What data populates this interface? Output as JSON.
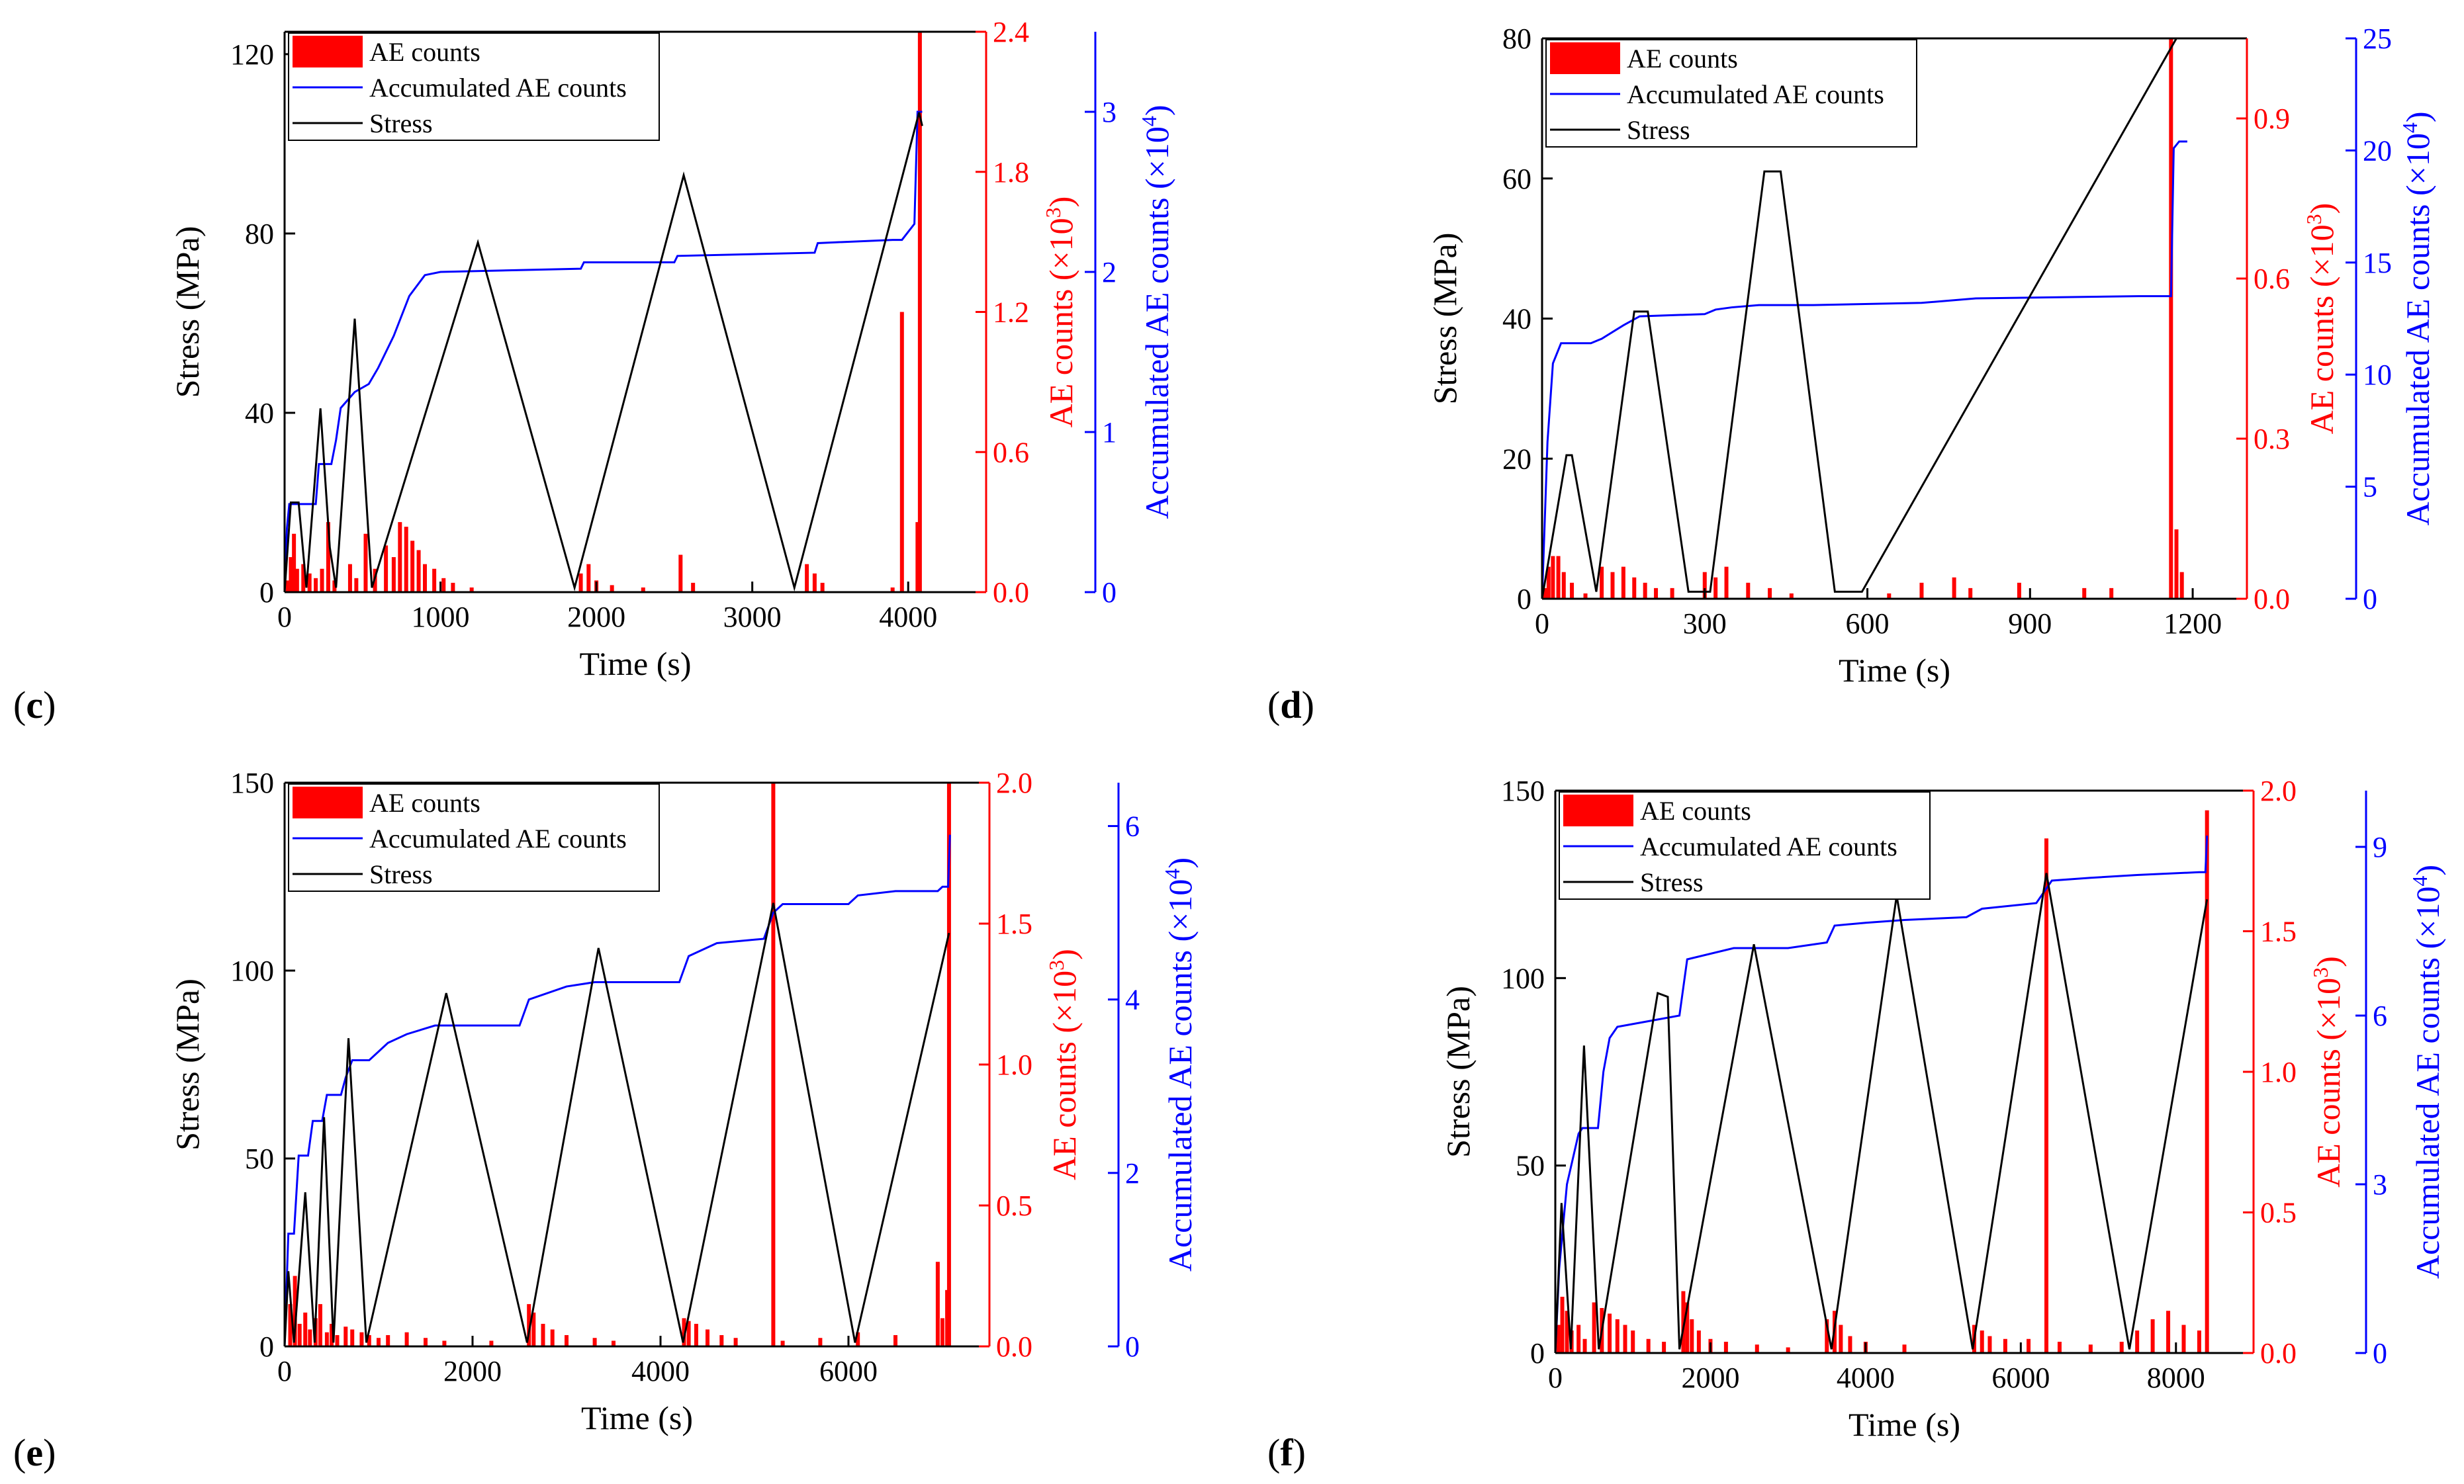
{
  "colors": {
    "ae": "#ff0000",
    "acc": "#0000ff",
    "stress": "#000000"
  },
  "chart_data": [
    {
      "id": "c",
      "panel_label": "(c)",
      "panel_letter": "c",
      "type": "bar+line",
      "xlabel": "Time (s)",
      "ylabel_left": "Stress (MPa)",
      "ylabel_ae": "AE counts (×10",
      "ylabel_ae_exp": "3",
      "ylabel_acc": "Accumulated AE counts (×10",
      "ylabel_acc_exp": "4",
      "xlim": [
        0,
        4500
      ],
      "xticks": [
        0,
        1000,
        2000,
        3000,
        4000
      ],
      "ylim_left": [
        0,
        125
      ],
      "yticks_left": [
        0,
        40,
        80,
        120
      ],
      "ylim_ae": [
        0,
        2.4
      ],
      "yticks_ae": [
        "0.0",
        "0.6",
        "1.2",
        "1.8",
        "2.4"
      ],
      "ylim_acc": [
        0,
        3.5
      ],
      "yticks_acc": [
        0,
        1,
        2,
        3
      ],
      "legend": {
        "ae": "AE counts",
        "acc": "Accumulated AE counts",
        "stress": "Stress"
      },
      "series": [
        {
          "name": "Stress",
          "x": [
            0,
            40,
            90,
            140,
            230,
            290,
            330,
            450,
            560,
            1240,
            1860,
            2560,
            3270,
            4070,
            4090
          ],
          "y": [
            0,
            20,
            20,
            1,
            41,
            10,
            1,
            61,
            1,
            78,
            1,
            93,
            1,
            107,
            104
          ]
        },
        {
          "name": "Accumulated AE counts",
          "x": [
            0,
            15,
            30,
            200,
            220,
            300,
            330,
            360,
            450,
            540,
            600,
            700,
            800,
            900,
            1000,
            1900,
            1920,
            2500,
            2520,
            3400,
            3420,
            3900,
            3960,
            4040,
            4060,
            4090
          ],
          "y": [
            0,
            0.4,
            0.55,
            0.55,
            0.8,
            0.8,
            0.95,
            1.15,
            1.25,
            1.3,
            1.4,
            1.6,
            1.85,
            1.98,
            2.0,
            2.02,
            2.06,
            2.06,
            2.1,
            2.12,
            2.18,
            2.2,
            2.2,
            2.3,
            3.0,
            3.0
          ]
        },
        {
          "name": "AE counts",
          "x": [
            20,
            40,
            60,
            80,
            120,
            160,
            200,
            240,
            280,
            320,
            420,
            460,
            520,
            580,
            650,
            700,
            740,
            780,
            820,
            860,
            900,
            960,
            1020,
            1080,
            1200,
            1900,
            1950,
            2000,
            2100,
            2300,
            2540,
            2620,
            3350,
            3400,
            3450,
            3900,
            3960,
            4060,
            4075
          ],
          "y": [
            0.05,
            0.15,
            0.25,
            0.1,
            0.12,
            0.08,
            0.06,
            0.1,
            0.3,
            0.05,
            0.12,
            0.06,
            0.25,
            0.1,
            0.2,
            0.15,
            0.3,
            0.28,
            0.22,
            0.18,
            0.12,
            0.1,
            0.06,
            0.04,
            0.02,
            0.08,
            0.12,
            0.05,
            0.03,
            0.02,
            0.16,
            0.04,
            0.12,
            0.08,
            0.04,
            0.02,
            1.2,
            0.3,
            2.4
          ]
        }
      ]
    },
    {
      "id": "d",
      "panel_label": "(d)",
      "panel_letter": "d",
      "type": "bar+line",
      "xlabel": "Time (s)",
      "ylabel_left": "Stress (MPa)",
      "ylabel_ae": "AE counts (×10",
      "ylabel_ae_exp": "3",
      "ylabel_acc": "Accumulated AE counts (×10",
      "ylabel_acc_exp": "4",
      "xlim": [
        0,
        1300
      ],
      "xticks": [
        0,
        300,
        600,
        900,
        1200
      ],
      "ylim_left": [
        0,
        80
      ],
      "yticks_left": [
        0,
        20,
        40,
        60,
        80
      ],
      "ylim_ae": [
        0,
        1.05
      ],
      "yticks_ae": [
        "0.0",
        "0.3",
        "0.6",
        "0.9"
      ],
      "ylim_acc": [
        0,
        25
      ],
      "yticks_acc": [
        0,
        5,
        10,
        15,
        20,
        25
      ],
      "legend": {
        "ae": "AE counts",
        "acc": "Accumulated AE counts",
        "stress": "Stress"
      },
      "series": [
        {
          "name": "Stress",
          "x": [
            0,
            45,
            55,
            100,
            170,
            195,
            270,
            310,
            410,
            440,
            540,
            590,
            1170
          ],
          "y": [
            0,
            20.5,
            20.5,
            1,
            41,
            41,
            1,
            1,
            61,
            61,
            1,
            1,
            80
          ]
        },
        {
          "name": "Accumulated AE counts",
          "x": [
            0,
            10,
            20,
            35,
            90,
            110,
            150,
            180,
            300,
            320,
            350,
            400,
            500,
            700,
            800,
            1100,
            1160,
            1165,
            1175,
            1190
          ],
          "y": [
            0,
            7,
            10.5,
            11.4,
            11.4,
            11.6,
            12.2,
            12.6,
            12.7,
            12.9,
            13.0,
            13.1,
            13.1,
            13.2,
            13.4,
            13.5,
            13.5,
            20.1,
            20.4,
            20.4
          ]
        },
        {
          "name": "AE counts",
          "x": [
            5,
            12,
            20,
            30,
            40,
            55,
            80,
            110,
            130,
            150,
            170,
            190,
            210,
            240,
            300,
            320,
            340,
            380,
            420,
            460,
            640,
            700,
            760,
            790,
            880,
            1000,
            1050,
            1160,
            1170,
            1180
          ],
          "y": [
            0.02,
            0.06,
            0.08,
            0.08,
            0.05,
            0.03,
            0.01,
            0.06,
            0.05,
            0.06,
            0.04,
            0.03,
            0.02,
            0.02,
            0.05,
            0.04,
            0.06,
            0.03,
            0.02,
            0.01,
            0.01,
            0.03,
            0.04,
            0.02,
            0.03,
            0.02,
            0.02,
            1.05,
            0.13,
            0.05
          ]
        }
      ]
    },
    {
      "id": "e",
      "panel_label": "(e)",
      "panel_letter": "e",
      "type": "bar+line",
      "xlabel": "Time (s)",
      "ylabel_left": "Stress (MPa)",
      "ylabel_ae": "AE counts (×10",
      "ylabel_ae_exp": "3",
      "ylabel_acc": "Accumulated AE counts (×10",
      "ylabel_acc_exp": "4",
      "xlim": [
        0,
        7500
      ],
      "xticks": [
        0,
        2000,
        4000,
        6000
      ],
      "ylim_left": [
        0,
        150
      ],
      "yticks_left": [
        0,
        50,
        100,
        150
      ],
      "ylim_ae": [
        0,
        2.0
      ],
      "yticks_ae": [
        "0.0",
        "0.5",
        "1.0",
        "1.5",
        "2.0"
      ],
      "ylim_acc": [
        0,
        6.5
      ],
      "yticks_acc": [
        0,
        2,
        4,
        6
      ],
      "legend": {
        "ae": "AE counts",
        "acc": "Accumulated AE counts",
        "stress": "Stress"
      },
      "series": [
        {
          "name": "Stress",
          "x": [
            0,
            40,
            100,
            220,
            320,
            420,
            520,
            680,
            870,
            1720,
            2580,
            3340,
            4240,
            5200,
            6070,
            7070
          ],
          "y": [
            0,
            20,
            1,
            41,
            1,
            61,
            1,
            82,
            1,
            94,
            1,
            106,
            1,
            118,
            1,
            110
          ]
        },
        {
          "name": "Accumulated AE counts",
          "x": [
            0,
            40,
            100,
            150,
            250,
            300,
            400,
            450,
            600,
            650,
            720,
            900,
            1100,
            1300,
            1600,
            2500,
            2600,
            3000,
            3300,
            4200,
            4300,
            4600,
            5100,
            5200,
            5300,
            6000,
            6100,
            6500,
            6950,
            7000,
            7060,
            7080
          ],
          "y": [
            0,
            1.3,
            1.3,
            2.2,
            2.2,
            2.6,
            2.6,
            2.9,
            2.9,
            3.1,
            3.3,
            3.3,
            3.5,
            3.6,
            3.7,
            3.7,
            4.0,
            4.15,
            4.2,
            4.2,
            4.5,
            4.65,
            4.7,
            5.0,
            5.1,
            5.1,
            5.2,
            5.25,
            5.25,
            5.3,
            5.3,
            5.9
          ]
        },
        {
          "name": "AE counts",
          "x": [
            60,
            110,
            160,
            220,
            270,
            330,
            380,
            450,
            500,
            560,
            650,
            720,
            820,
            900,
            1000,
            1100,
            1300,
            1500,
            1700,
            2200,
            2600,
            2650,
            2750,
            2850,
            3000,
            3300,
            3500,
            4250,
            4300,
            4380,
            4500,
            4650,
            4800,
            5200,
            5300,
            5700,
            6100,
            6500,
            6950,
            7000,
            7050,
            7070
          ],
          "y": [
            0.15,
            0.25,
            0.08,
            0.12,
            0.06,
            0.1,
            0.15,
            0.05,
            0.08,
            0.04,
            0.07,
            0.06,
            0.05,
            0.04,
            0.03,
            0.04,
            0.05,
            0.03,
            0.02,
            0.02,
            0.15,
            0.12,
            0.08,
            0.06,
            0.04,
            0.03,
            0.02,
            0.1,
            0.09,
            0.08,
            0.06,
            0.04,
            0.03,
            2.0,
            0.02,
            0.03,
            0.05,
            0.04,
            0.3,
            0.1,
            0.2,
            2.0
          ]
        }
      ]
    },
    {
      "id": "f",
      "panel_label": "(f)",
      "panel_letter": "f",
      "type": "bar+line",
      "xlabel": "Time (s)",
      "ylabel_left": "Stress (MPa)",
      "ylabel_ae": "AE counts (×10",
      "ylabel_ae_exp": "3",
      "ylabel_acc": "Accumulated AE counts (×10",
      "ylabel_acc_exp": "4",
      "xlim": [
        0,
        9000
      ],
      "xticks": [
        0,
        2000,
        4000,
        6000,
        8000
      ],
      "ylim_left": [
        0,
        150
      ],
      "yticks_left": [
        0,
        50,
        100,
        150
      ],
      "ylim_ae": [
        0,
        2.0
      ],
      "yticks_ae": [
        "0.0",
        "0.5",
        "1.0",
        "1.5",
        "2.0"
      ],
      "ylim_acc": [
        0,
        10
      ],
      "yticks_acc": [
        0,
        3,
        6,
        9
      ],
      "legend": {
        "ae": "AE counts",
        "acc": "Accumulated AE counts",
        "stress": "Stress"
      },
      "series": [
        {
          "name": "Stress",
          "x": [
            0,
            80,
            200,
            370,
            560,
            1320,
            1450,
            1600,
            2560,
            3560,
            4400,
            5380,
            6330,
            7400,
            8400
          ],
          "y": [
            0,
            40,
            1,
            82,
            1,
            96,
            95,
            1,
            109,
            1,
            122,
            1,
            128,
            1,
            121
          ]
        },
        {
          "name": "Accumulated AE counts",
          "x": [
            0,
            50,
            150,
            300,
            350,
            550,
            620,
            700,
            800,
            1200,
            1600,
            1700,
            2300,
            3000,
            3500,
            3600,
            4000,
            4500,
            5300,
            5500,
            6200,
            6400,
            6900,
            7500,
            8300,
            8380,
            8400
          ],
          "y": [
            0,
            1.5,
            3.0,
            3.9,
            4.0,
            4.0,
            5.0,
            5.6,
            5.8,
            5.9,
            6.0,
            7.0,
            7.2,
            7.2,
            7.3,
            7.6,
            7.65,
            7.7,
            7.75,
            7.9,
            8.0,
            8.4,
            8.45,
            8.5,
            8.55,
            8.55,
            9.2
          ]
        },
        {
          "name": "AE counts",
          "x": [
            40,
            90,
            150,
            210,
            300,
            380,
            500,
            600,
            700,
            800,
            900,
            1000,
            1200,
            1400,
            1650,
            1700,
            1760,
            1850,
            2000,
            2200,
            2600,
            3000,
            3500,
            3600,
            3680,
            3800,
            4000,
            4500,
            5400,
            5500,
            5600,
            5800,
            6100,
            6330,
            6500,
            6900,
            7300,
            7500,
            7700,
            7900,
            8100,
            8300,
            8400
          ],
          "y": [
            0.1,
            0.2,
            0.15,
            0.08,
            0.1,
            0.05,
            0.18,
            0.16,
            0.14,
            0.12,
            0.1,
            0.08,
            0.05,
            0.04,
            0.22,
            0.18,
            0.12,
            0.08,
            0.05,
            0.04,
            0.03,
            0.02,
            0.12,
            0.15,
            0.1,
            0.06,
            0.04,
            0.03,
            0.1,
            0.08,
            0.06,
            0.05,
            0.05,
            1.83,
            0.04,
            0.03,
            0.04,
            0.08,
            0.12,
            0.15,
            0.1,
            0.08,
            1.93
          ]
        }
      ]
    }
  ]
}
